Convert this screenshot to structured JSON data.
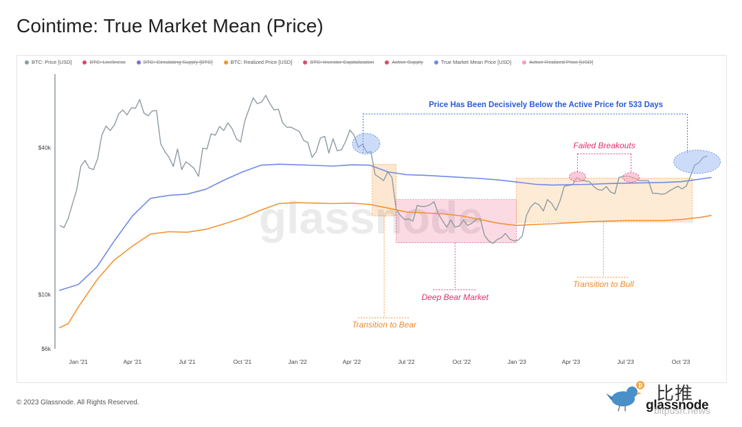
{
  "title": "Cointime: True Market Mean (Price)",
  "legend": [
    {
      "label": "BTC: Price [USD]",
      "color": "#8c9aa0",
      "active": true
    },
    {
      "label": "BTC: Liveliness",
      "color": "#e0456e",
      "active": false
    },
    {
      "label": "BTC: Circulating Supply [BTC]",
      "color": "#7b72d9",
      "active": false
    },
    {
      "label": "BTC: Realized Price [USD]",
      "color": "#f5922f",
      "active": true
    },
    {
      "label": "BTC: Investor Capitalization",
      "color": "#e0456e",
      "active": false
    },
    {
      "label": "Active Supply",
      "color": "#e0456e",
      "active": false
    },
    {
      "label": "True Market Mean Price [USD]",
      "color": "#6f89e6",
      "active": true
    },
    {
      "label": "Active Realized Price [USD]",
      "color": "#f2a0b4",
      "active": false
    }
  ],
  "watermark": "glassnode",
  "footer": "© 2023 Glassnode. All Rights Reserved.",
  "brand": {
    "cn": "比推",
    "name": "glassnode",
    "site": "bitpush.news"
  },
  "annotations": {
    "headline": "Price Has Been Decisively Below the Active Price for 533 Days",
    "failed": "Failed Breakouts",
    "deep_bear": "Deep Bear Market",
    "to_bear": "Transition to Bear",
    "to_bull": "Transition to Bull"
  },
  "colors": {
    "price": "#8c9aa0",
    "true_market_mean": "#6f89e6",
    "realized": "#f5922f",
    "headline": "#2a5bd7",
    "pink": "#e0306a",
    "orange": "#ef8b2c",
    "bull_fill": "#fde7cf",
    "bear_fill": "#fbd3df",
    "transition_fill": "#fde3c8"
  },
  "chart_data": {
    "type": "line",
    "y_scale": "log",
    "ylim": [
      6000,
      80000
    ],
    "y_ticks": [
      {
        "value": 6000,
        "label": "$6k"
      },
      {
        "value": 10000,
        "label": "$10k"
      },
      {
        "value": 40000,
        "label": "$40k"
      }
    ],
    "xlim": [
      "2020-11-23",
      "2023-11-26"
    ],
    "x_ticks": [
      {
        "date": "2021-01-01",
        "label": "Jan '21"
      },
      {
        "date": "2021-04-01",
        "label": "Apr '21"
      },
      {
        "date": "2021-07-01",
        "label": "Jul '21"
      },
      {
        "date": "2021-10-01",
        "label": "Oct '21"
      },
      {
        "date": "2022-01-01",
        "label": "Jan '22"
      },
      {
        "date": "2022-04-01",
        "label": "Apr '22"
      },
      {
        "date": "2022-07-01",
        "label": "Jul '22"
      },
      {
        "date": "2022-10-01",
        "label": "Oct '22"
      },
      {
        "date": "2023-01-01",
        "label": "Jan '23"
      },
      {
        "date": "2023-04-01",
        "label": "Apr '23"
      },
      {
        "date": "2023-07-01",
        "label": "Jul '23"
      },
      {
        "date": "2023-10-01",
        "label": "Oct '23"
      }
    ],
    "series": [
      {
        "name": "BTC: Price [USD]",
        "x": [
          "2020-12-01",
          "2020-12-08",
          "2020-12-15",
          "2020-12-22",
          "2020-12-29",
          "2021-01-05",
          "2021-01-12",
          "2021-01-19",
          "2021-01-26",
          "2021-02-02",
          "2021-02-09",
          "2021-02-16",
          "2021-02-23",
          "2021-03-02",
          "2021-03-09",
          "2021-03-16",
          "2021-03-23",
          "2021-03-30",
          "2021-04-06",
          "2021-04-13",
          "2021-04-20",
          "2021-04-27",
          "2021-05-04",
          "2021-05-11",
          "2021-05-18",
          "2021-05-25",
          "2021-06-01",
          "2021-06-08",
          "2021-06-15",
          "2021-06-22",
          "2021-06-29",
          "2021-07-06",
          "2021-07-13",
          "2021-07-20",
          "2021-07-27",
          "2021-08-03",
          "2021-08-10",
          "2021-08-17",
          "2021-08-24",
          "2021-08-31",
          "2021-09-07",
          "2021-09-14",
          "2021-09-21",
          "2021-09-28",
          "2021-10-05",
          "2021-10-12",
          "2021-10-19",
          "2021-10-26",
          "2021-11-02",
          "2021-11-09",
          "2021-11-16",
          "2021-11-23",
          "2021-11-30",
          "2021-12-07",
          "2021-12-14",
          "2021-12-21",
          "2021-12-28",
          "2022-01-04",
          "2022-01-11",
          "2022-01-18",
          "2022-01-25",
          "2022-02-01",
          "2022-02-08",
          "2022-02-15",
          "2022-02-22",
          "2022-03-01",
          "2022-03-08",
          "2022-03-15",
          "2022-03-22",
          "2022-03-29",
          "2022-04-05",
          "2022-04-12",
          "2022-04-19",
          "2022-04-26",
          "2022-05-03",
          "2022-05-10",
          "2022-05-17",
          "2022-05-24",
          "2022-05-31",
          "2022-06-07",
          "2022-06-14",
          "2022-06-21",
          "2022-06-28",
          "2022-07-05",
          "2022-07-12",
          "2022-07-19",
          "2022-07-26",
          "2022-08-02",
          "2022-08-09",
          "2022-08-16",
          "2022-08-23",
          "2022-08-30",
          "2022-09-06",
          "2022-09-13",
          "2022-09-20",
          "2022-09-27",
          "2022-10-04",
          "2022-10-11",
          "2022-10-18",
          "2022-10-25",
          "2022-11-01",
          "2022-11-08",
          "2022-11-15",
          "2022-11-22",
          "2022-11-29",
          "2022-12-06",
          "2022-12-13",
          "2022-12-20",
          "2022-12-27",
          "2023-01-03",
          "2023-01-10",
          "2023-01-17",
          "2023-01-24",
          "2023-01-31",
          "2023-02-07",
          "2023-02-14",
          "2023-02-21",
          "2023-02-28",
          "2023-03-07",
          "2023-03-14",
          "2023-03-21",
          "2023-03-28",
          "2023-04-04",
          "2023-04-11",
          "2023-04-18",
          "2023-04-25",
          "2023-05-02",
          "2023-05-09",
          "2023-05-16",
          "2023-05-23",
          "2023-05-30",
          "2023-06-06",
          "2023-06-13",
          "2023-06-20",
          "2023-06-27",
          "2023-07-04",
          "2023-07-11",
          "2023-07-18",
          "2023-07-25",
          "2023-08-01",
          "2023-08-08",
          "2023-08-15",
          "2023-08-22",
          "2023-08-29",
          "2023-09-05",
          "2023-09-12",
          "2023-09-19",
          "2023-09-26",
          "2023-10-03",
          "2023-10-10",
          "2023-10-17",
          "2023-10-24",
          "2023-10-31",
          "2023-11-07",
          "2023-11-14"
        ],
        "y": [
          19200,
          18800,
          20500,
          23500,
          26800,
          33500,
          35500,
          33000,
          32500,
          36000,
          45000,
          49000,
          47000,
          49500,
          55000,
          57000,
          54500,
          58200,
          58000,
          63000,
          55500,
          54000,
          56500,
          56800,
          41500,
          38500,
          36500,
          33500,
          39500,
          32500,
          35000,
          34000,
          32800,
          30500,
          39800,
          39500,
          45500,
          45000,
          48800,
          47000,
          50500,
          47800,
          43500,
          42200,
          51500,
          57500,
          64000,
          60500,
          61500,
          65500,
          60500,
          57000,
          57500,
          50500,
          48500,
          48500,
          47500,
          46500,
          42800,
          42000,
          36500,
          38500,
          43800,
          44500,
          38000,
          43500,
          38800,
          39200,
          42500,
          47200,
          45000,
          40100,
          41400,
          38200,
          38500,
          31000,
          30200,
          29300,
          31800,
          30200,
          22400,
          21100,
          20300,
          20400,
          20000,
          23200,
          22950,
          23000,
          23300,
          24000,
          21500,
          20100,
          18900,
          20200,
          18900,
          19100,
          20200,
          19200,
          19600,
          20300,
          20500,
          17500,
          16600,
          16200,
          16800,
          17100,
          17800,
          16900,
          16600,
          16700,
          17400,
          21100,
          22900,
          23800,
          23300,
          22000,
          24500,
          23600,
          22100,
          24300,
          27800,
          28000,
          28200,
          30200,
          29300,
          29200,
          29000,
          27700,
          26900,
          26800,
          27700,
          26300,
          25900,
          30200,
          30500,
          30600,
          30300,
          29900,
          29300,
          29300,
          29300,
          26000,
          26000,
          25800,
          25900,
          26600,
          27200,
          27800,
          27100,
          27800,
          30600,
          33900,
          34700,
          36500,
          37000
        ],
        "color": "#8c9aa0"
      },
      {
        "name": "True Market Mean Price [USD]",
        "x": [
          "2020-11-30",
          "2021-01-01",
          "2021-02-01",
          "2021-03-01",
          "2021-04-01",
          "2021-05-01",
          "2021-06-01",
          "2021-07-01",
          "2021-08-01",
          "2021-09-01",
          "2021-10-01",
          "2021-11-01",
          "2021-12-01",
          "2022-01-01",
          "2022-02-01",
          "2022-03-01",
          "2022-04-01",
          "2022-05-01",
          "2022-06-01",
          "2022-07-01",
          "2022-08-01",
          "2022-09-01",
          "2022-10-01",
          "2022-11-01",
          "2022-12-01",
          "2023-01-01",
          "2023-02-01",
          "2023-03-01",
          "2023-04-01",
          "2023-05-01",
          "2023-06-01",
          "2023-07-01",
          "2023-08-01",
          "2023-09-01",
          "2023-10-01",
          "2023-11-01",
          "2023-11-21"
        ],
        "y": [
          10400,
          11000,
          13000,
          16500,
          21000,
          24800,
          25500,
          25800,
          27000,
          29500,
          31800,
          33900,
          34200,
          34000,
          33800,
          33600,
          34000,
          33900,
          31800,
          31000,
          30800,
          30500,
          30200,
          29900,
          29500,
          28900,
          28300,
          28100,
          28200,
          28300,
          28500,
          28600,
          28700,
          28800,
          29000,
          29700,
          30200
        ],
        "color": "#6f89e6"
      },
      {
        "name": "BTC: Realized Price [USD]",
        "x": [
          "2020-11-30",
          "2020-12-15",
          "2021-01-01",
          "2021-02-01",
          "2021-03-01",
          "2021-04-01",
          "2021-05-01",
          "2021-06-01",
          "2021-07-01",
          "2021-08-01",
          "2021-09-01",
          "2021-10-01",
          "2021-11-01",
          "2021-12-01",
          "2022-01-01",
          "2022-02-01",
          "2022-03-01",
          "2022-04-01",
          "2022-05-01",
          "2022-06-01",
          "2022-07-01",
          "2022-08-01",
          "2022-09-01",
          "2022-10-01",
          "2022-11-01",
          "2022-12-01",
          "2023-01-01",
          "2023-02-01",
          "2023-03-01",
          "2023-04-01",
          "2023-05-01",
          "2023-06-01",
          "2023-07-01",
          "2023-08-01",
          "2023-09-01",
          "2023-10-01",
          "2023-11-01",
          "2023-11-21"
        ],
        "y": [
          7300,
          7600,
          8900,
          11500,
          13800,
          15800,
          17700,
          18100,
          18000,
          18500,
          19500,
          20600,
          22200,
          23600,
          23800,
          23700,
          23600,
          23700,
          23400,
          22600,
          21800,
          21600,
          21400,
          21000,
          20300,
          19600,
          19200,
          19400,
          19500,
          19700,
          19900,
          20000,
          20100,
          20100,
          20100,
          20300,
          20700,
          21100
        ],
        "color": "#f5922f"
      }
    ],
    "regions": [
      {
        "label": "Transition to Bear",
        "from": "2022-05-05",
        "to": "2022-06-14",
        "ymin": 21000,
        "ymax": 34200
      },
      {
        "label": "Deep Bear Market",
        "from": "2022-06-14",
        "to": "2022-12-31",
        "ymin": 16300,
        "ymax": 24500
      },
      {
        "label": "Transition to Bull",
        "from": "2022-12-31",
        "to": "2023-10-20",
        "ymin": 19800,
        "ymax": 30000
      }
    ]
  }
}
